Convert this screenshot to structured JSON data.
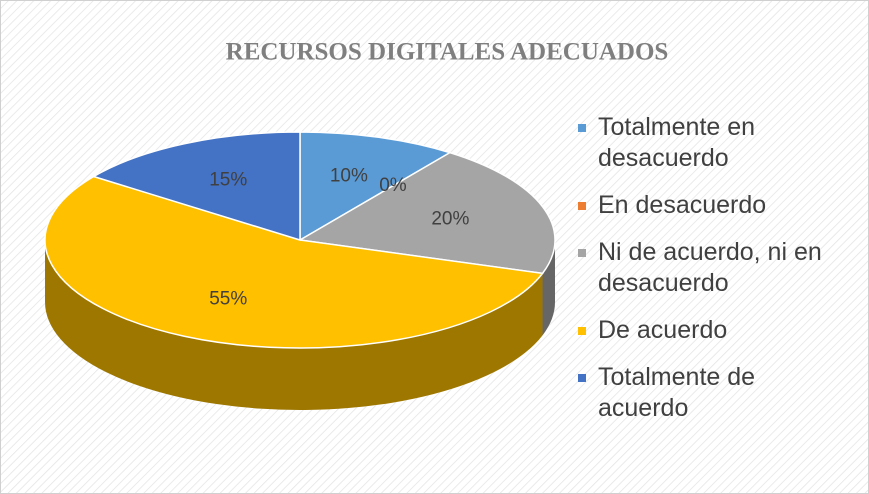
{
  "chart_data": {
    "type": "pie",
    "title": "RECURSOS DIGITALES ADECUADOS",
    "categories": [
      "Totalmente en desacuerdo",
      "En desacuerdo",
      "Ni de acuerdo, ni en desacuerdo",
      "De acuerdo",
      "Totalmente de acuerdo"
    ],
    "values": [
      10,
      0,
      20,
      55,
      15
    ],
    "value_labels": [
      "10%",
      "0%",
      "20%",
      "55%",
      "15%"
    ],
    "colors": [
      "#5b9bd5",
      "#ed7d31",
      "#a5a5a5",
      "#ffc000",
      "#4472c4"
    ],
    "legend": "right"
  }
}
